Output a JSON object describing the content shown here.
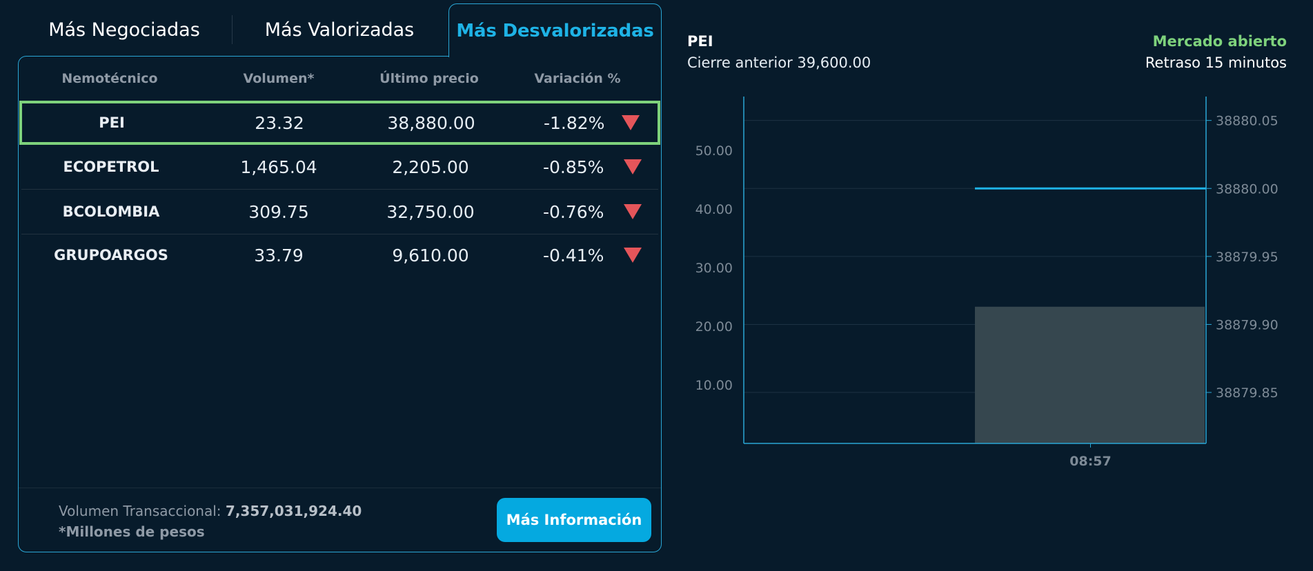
{
  "tabs": [
    {
      "label": "Más Negociadas"
    },
    {
      "label": "Más Valorizadas"
    },
    {
      "label": "Más Desvalorizadas",
      "active": true
    }
  ],
  "table": {
    "headers": [
      "Nemotécnico",
      "Volumen*",
      "Último precio",
      "Variación %"
    ],
    "rows": [
      {
        "nemo": "PEI",
        "volumen": "23.32",
        "precio": "38,880.00",
        "variacion": "-1.82%",
        "trend": "down",
        "selected": true
      },
      {
        "nemo": "ECOPETROL",
        "volumen": "1,465.04",
        "precio": "2,205.00",
        "variacion": "-0.85%",
        "trend": "down"
      },
      {
        "nemo": "BCOLOMBIA",
        "volumen": "309.75",
        "precio": "32,750.00",
        "variacion": "-0.76%",
        "trend": "down"
      },
      {
        "nemo": "GRUPOARGOS",
        "volumen": "33.79",
        "precio": "9,610.00",
        "variacion": "-0.41%",
        "trend": "down"
      }
    ]
  },
  "footer": {
    "volume_label": "Volumen Transaccional:",
    "volume_value": "7,357,031,924.40",
    "note": "*Millones de pesos",
    "more_button": "Más Información"
  },
  "detail": {
    "symbol": "PEI",
    "prev_close": "Cierre anterior 39,600.00",
    "market_status": "Mercado abierto",
    "delay": "Retraso 15 minutos"
  },
  "colors": {
    "background": "#071b2b",
    "accent": "#1eb3e6",
    "positive": "#7ed27c",
    "negative": "#e5555a",
    "button": "#05a9e0"
  },
  "chart_data": {
    "type": "bar",
    "x": [
      "08:57"
    ],
    "series": [
      {
        "type": "bar",
        "axis": "left",
        "values": [
          23.32
        ]
      },
      {
        "type": "line",
        "axis": "right",
        "values": [
          38880.0
        ]
      }
    ],
    "left_axis": {
      "ticks": [
        "10.00",
        "20.00",
        "30.00",
        "40.00",
        "50.00"
      ],
      "ylim": [
        0,
        58
      ]
    },
    "right_axis": {
      "ticks": [
        "38879.85",
        "38879.90",
        "38879.95",
        "38880.00",
        "38880.05"
      ],
      "ylim": [
        38879.8125,
        38880.0625
      ]
    },
    "grid": true
  }
}
